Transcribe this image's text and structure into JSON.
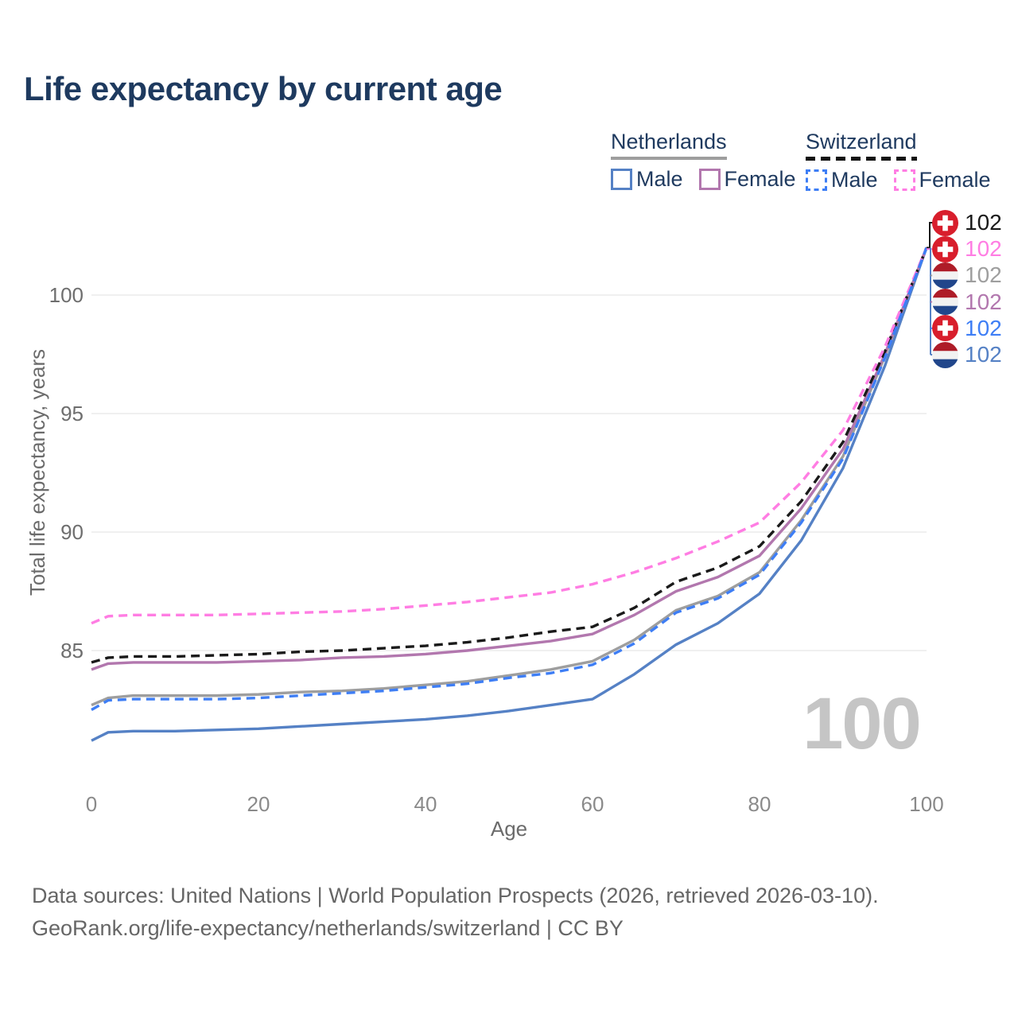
{
  "title": "Life expectancy by current age",
  "legend": {
    "groups": [
      {
        "label": "Netherlands",
        "line_style": "solid",
        "line_color": "#9E9E9E",
        "items": [
          {
            "label": "Male",
            "color": "#5581C5",
            "dashed": false
          },
          {
            "label": "Female",
            "color": "#B277AE",
            "dashed": false
          }
        ]
      },
      {
        "label": "Switzerland",
        "line_style": "dashed",
        "line_color": "#1A1A1A",
        "items": [
          {
            "label": "Male",
            "color": "#3E7EF5",
            "dashed": true
          },
          {
            "label": "Female",
            "color": "#FF7DE3",
            "dashed": true
          }
        ]
      }
    ]
  },
  "chart_data": {
    "type": "line",
    "title": "Life expectancy by current age",
    "xlabel": "Age",
    "ylabel": "Total life expectancy, years",
    "xlim": [
      0,
      100
    ],
    "ylim": [
      80.5,
      103
    ],
    "xticks": [
      0,
      20,
      40,
      60,
      80,
      100
    ],
    "yticks": [
      100,
      95,
      90,
      85
    ],
    "grid": "horizontal",
    "legend_position": "top-right",
    "watermark": "100",
    "x": [
      0,
      2,
      5,
      10,
      15,
      20,
      25,
      30,
      35,
      40,
      45,
      50,
      55,
      60,
      65,
      70,
      75,
      80,
      85,
      90,
      95,
      100
    ],
    "series": [
      {
        "name": "Netherlands All",
        "country": "netherlands",
        "sex": "all",
        "color": "#9E9E9E",
        "dashed": false,
        "values": [
          82.7,
          83.0,
          83.1,
          83.1,
          83.1,
          83.15,
          83.25,
          83.3,
          83.4,
          83.55,
          83.7,
          83.95,
          84.2,
          84.55,
          85.45,
          86.7,
          87.3,
          88.3,
          90.5,
          93.2,
          97.4,
          102
        ]
      },
      {
        "name": "Netherlands Male",
        "country": "netherlands",
        "sex": "male",
        "color": "#5581C5",
        "dashed": false,
        "values": [
          81.2,
          81.55,
          81.6,
          81.6,
          81.65,
          81.7,
          81.8,
          81.9,
          82.0,
          82.1,
          82.25,
          82.45,
          82.7,
          82.95,
          84.0,
          85.25,
          86.15,
          87.4,
          89.65,
          92.7,
          97.0,
          102
        ]
      },
      {
        "name": "Netherlands Female",
        "country": "netherlands",
        "sex": "female",
        "color": "#B277AE",
        "dashed": false,
        "values": [
          84.2,
          84.45,
          84.5,
          84.5,
          84.5,
          84.55,
          84.6,
          84.7,
          84.75,
          84.85,
          85.0,
          85.2,
          85.4,
          85.7,
          86.5,
          87.5,
          88.1,
          89.0,
          91.0,
          93.5,
          97.5,
          102
        ]
      },
      {
        "name": "Switzerland All",
        "country": "switzerland",
        "sex": "all",
        "color": "#1A1A1A",
        "dashed": true,
        "values": [
          84.5,
          84.7,
          84.75,
          84.75,
          84.8,
          84.85,
          84.95,
          85.0,
          85.1,
          85.2,
          85.35,
          85.55,
          85.8,
          86.0,
          86.8,
          87.9,
          88.5,
          89.4,
          91.3,
          93.8,
          97.6,
          102
        ]
      },
      {
        "name": "Switzerland Female",
        "country": "switzerland",
        "sex": "female",
        "color": "#FF7DE3",
        "dashed": true,
        "values": [
          86.15,
          86.45,
          86.5,
          86.5,
          86.5,
          86.55,
          86.6,
          86.65,
          86.75,
          86.9,
          87.05,
          87.25,
          87.45,
          87.8,
          88.3,
          88.9,
          89.6,
          90.4,
          92.1,
          94.3,
          97.8,
          102
        ]
      },
      {
        "name": "Switzerland Male",
        "country": "switzerland",
        "sex": "male",
        "color": "#3E7EF5",
        "dashed": true,
        "values": [
          82.5,
          82.9,
          82.95,
          82.95,
          82.95,
          83.0,
          83.1,
          83.2,
          83.3,
          83.45,
          83.6,
          83.85,
          84.05,
          84.4,
          85.3,
          86.6,
          87.2,
          88.2,
          90.4,
          93.1,
          97.35,
          102
        ]
      }
    ],
    "end_labels": [
      {
        "flag": "switzerland",
        "series": "Switzerland All",
        "value": "102",
        "color": "#1A1A1A"
      },
      {
        "flag": "switzerland",
        "series": "Switzerland Female",
        "value": "102",
        "color": "#FF7DE3"
      },
      {
        "flag": "netherlands",
        "series": "Netherlands All",
        "value": "102",
        "color": "#9E9E9E"
      },
      {
        "flag": "netherlands",
        "series": "Netherlands Female",
        "value": "102",
        "color": "#B277AE"
      },
      {
        "flag": "switzerland",
        "series": "Switzerland Male",
        "value": "102",
        "color": "#3E7EF5"
      },
      {
        "flag": "netherlands",
        "series": "Netherlands Male",
        "value": "102",
        "color": "#5581C5"
      }
    ],
    "flag_colors": {
      "switzerland": {
        "red": "#D81E2C",
        "cross": "#FFFFFF"
      },
      "netherlands": {
        "red": "#AE1C28",
        "white": "#F2F2F2",
        "blue": "#21468B"
      }
    }
  },
  "footer": {
    "line1": "Data sources: United Nations | World Population Prospects (2026, retrieved 2026-03-10).",
    "line2": "GeoRank.org/life-expectancy/netherlands/switzerland | CC BY"
  }
}
